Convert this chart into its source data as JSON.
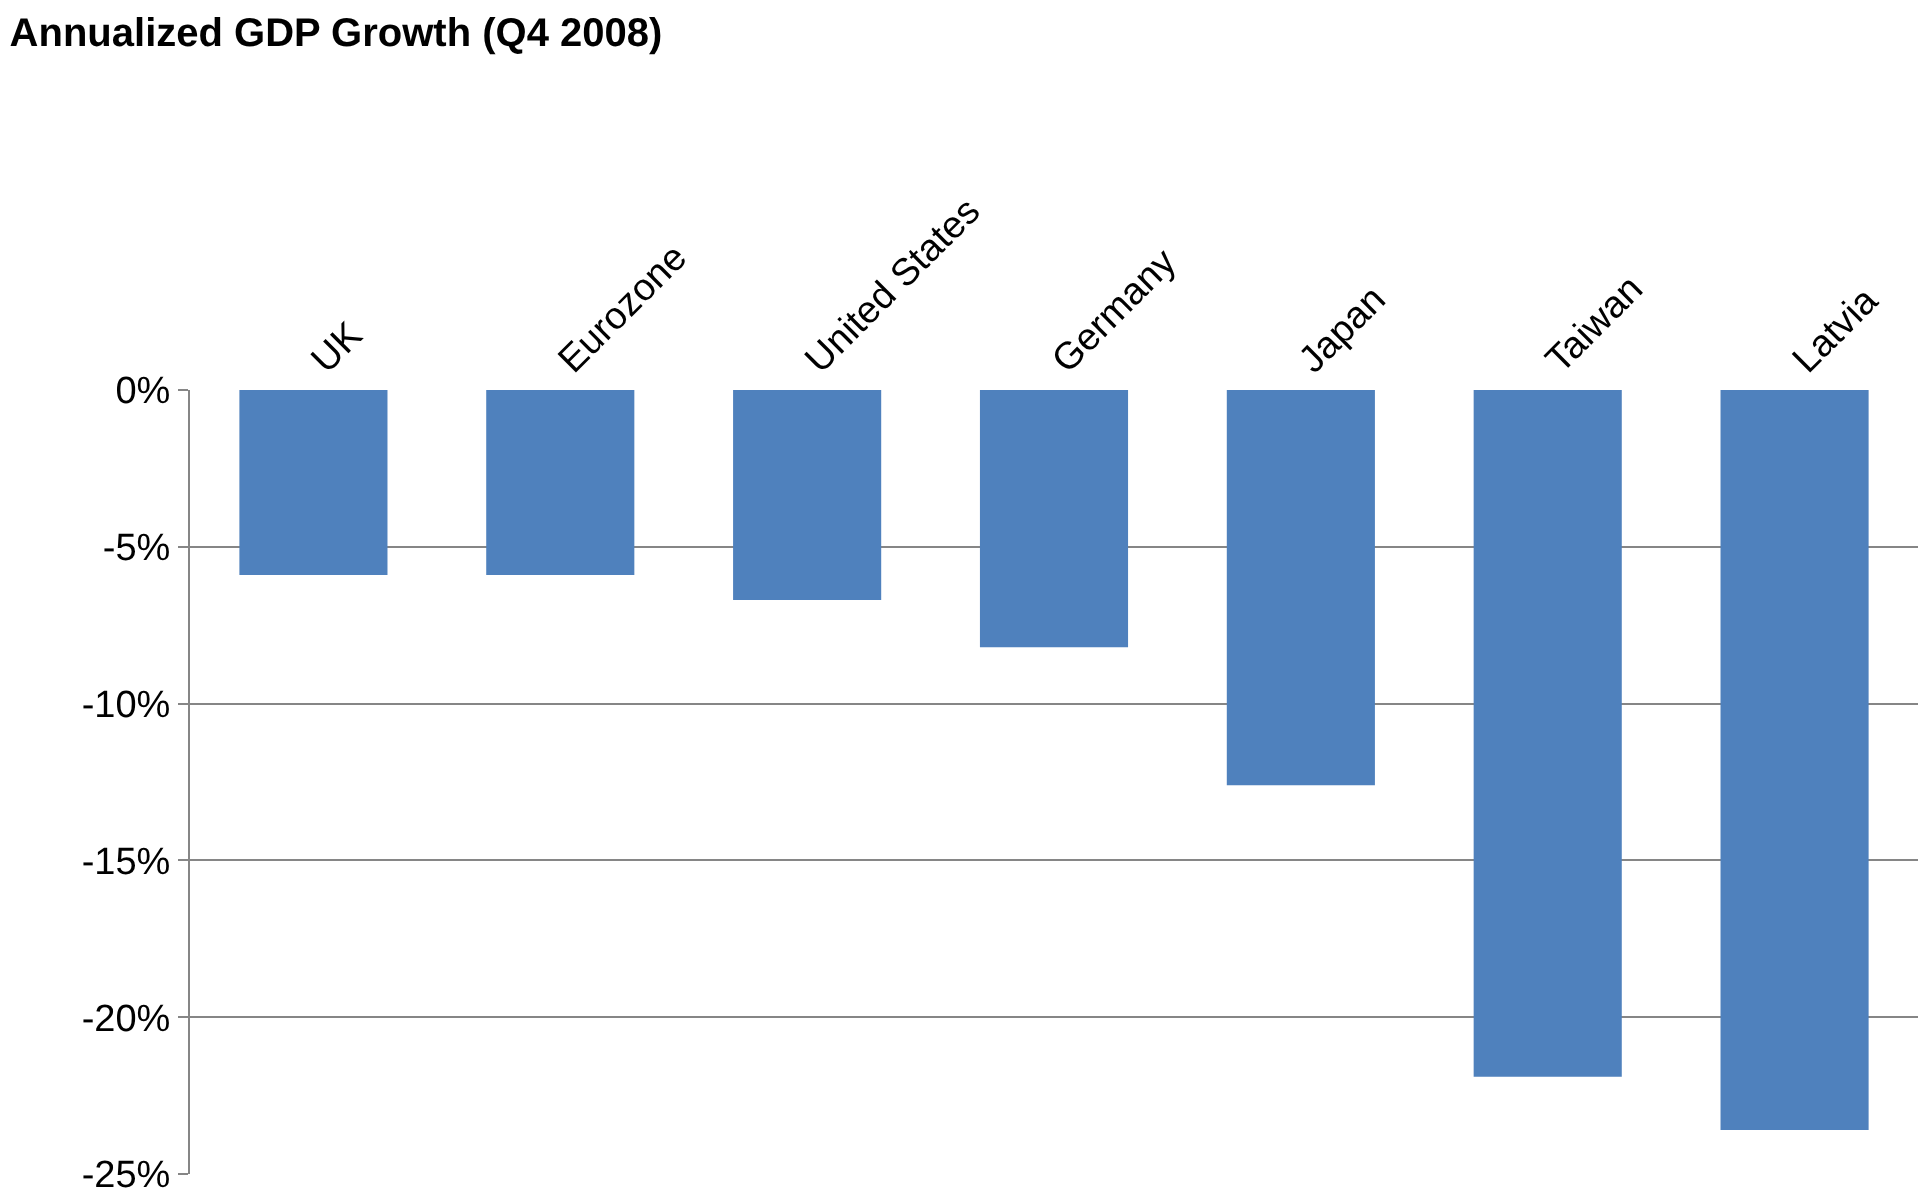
{
  "chart_data": {
    "type": "bar",
    "title": "Annualized GDP Growth (Q4 2008)",
    "categories": [
      "UK",
      "Eurozone",
      "United States",
      "Germany",
      "Japan",
      "Taiwan",
      "Latvia"
    ],
    "values": [
      -5.9,
      -5.9,
      -6.7,
      -8.2,
      -12.6,
      -21.9,
      -23.6
    ],
    "color": "#4f81bd",
    "ylim": [
      -25,
      0
    ],
    "yticks": [
      {
        "value": 0,
        "label": "0%"
      },
      {
        "value": -5,
        "label": "-5%"
      },
      {
        "value": -10,
        "label": "-10%"
      },
      {
        "value": -15,
        "label": "-15%"
      },
      {
        "value": -20,
        "label": "-20%"
      },
      {
        "value": -25,
        "label": "-25%"
      }
    ],
    "grid": "y"
  }
}
